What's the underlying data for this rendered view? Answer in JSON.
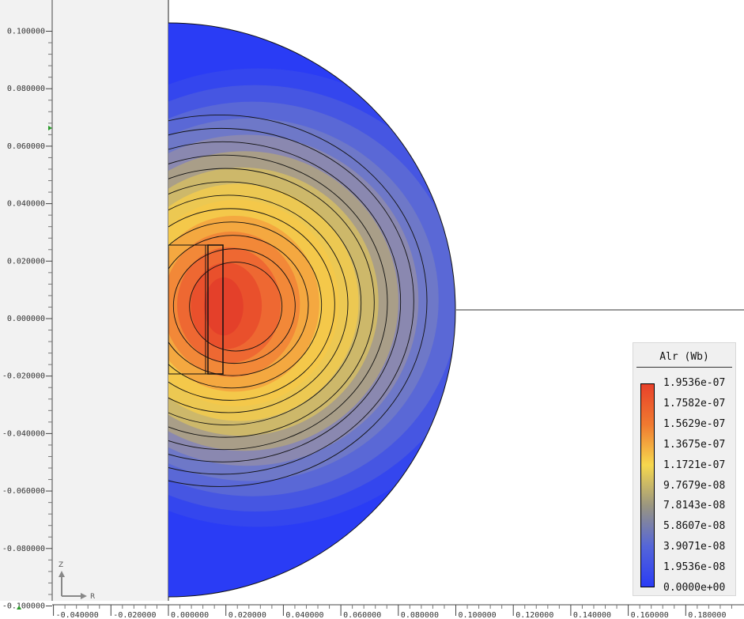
{
  "chart_data": {
    "type": "heatmap",
    "xlabel": "R",
    "ylabel": "Z",
    "x_ticks": [
      "-0.040000",
      "-0.020000",
      "0.000000",
      "0.020000",
      "0.040000",
      "0.060000",
      "0.080000",
      "0.100000",
      "0.120000",
      "0.140000",
      "0.160000",
      "0.180000"
    ],
    "x_tick_values": [
      -0.04,
      -0.02,
      0,
      0.02,
      0.04,
      0.06,
      0.08,
      0.1,
      0.12,
      0.14,
      0.16,
      0.18
    ],
    "y_ticks": [
      "0.100000",
      "0.080000",
      "0.060000",
      "0.040000",
      "0.020000",
      "0.000000",
      "-0.020000",
      "-0.040000",
      "-0.060000",
      "-0.080000",
      "-0.100000"
    ],
    "y_tick_values": [
      0.1,
      0.08,
      0.06,
      0.04,
      0.02,
      0,
      -0.02,
      -0.04,
      -0.06,
      -0.08,
      -0.1
    ],
    "domain_radius": 0.1,
    "coil": {
      "r_inner": 0.0,
      "r_outer": 0.0135,
      "z_min": -0.02,
      "z_max": 0.025
    },
    "field_peak": {
      "r": 0.02,
      "z": 0.004
    },
    "colors": {
      "background_left": "#f2f2f2",
      "background_right": "#ffffff",
      "low": "#2a3cf5",
      "high": "#e8412a"
    },
    "legend": {
      "title": "Alr (Wb)",
      "placement": "bottom-right",
      "labels": [
        "1.9536e-07",
        "1.7582e-07",
        "1.5629e-07",
        "1.3675e-07",
        "1.1721e-07",
        "9.7679e-08",
        "7.8143e-08",
        "5.8607e-08",
        "3.9071e-08",
        "1.9536e-08",
        "0.0000e+00"
      ],
      "min": 0.0,
      "max": 1.9536e-07
    }
  }
}
